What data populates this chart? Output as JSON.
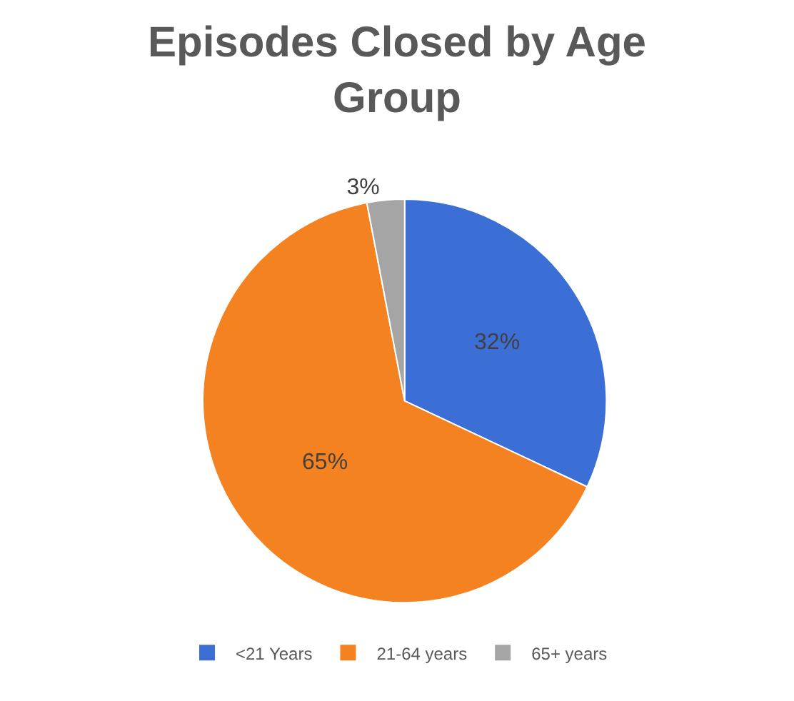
{
  "chart_data": {
    "type": "pie",
    "title": "Episodes Closed by Age Group",
    "categories": [
      "<21 Years",
      "21-64 years",
      "65+ years"
    ],
    "values": [
      32,
      65,
      3
    ],
    "value_labels": [
      "32%",
      "65%",
      "3%"
    ],
    "colors": [
      "#3b6fd6",
      "#f58220",
      "#a5a5a5"
    ],
    "legend": "bottom"
  }
}
